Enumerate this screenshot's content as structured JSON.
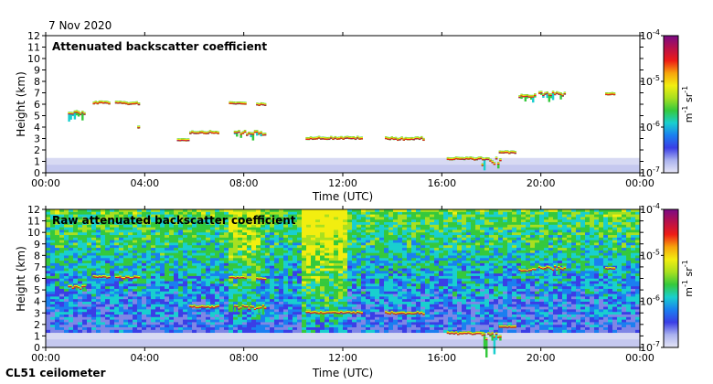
{
  "header": {
    "date": "7 Nov 2020"
  },
  "footer": {
    "instrument": "CL51 ceilometer"
  },
  "chart_data": [
    {
      "type": "heatmap",
      "title": "Attenuated backscatter coefficient",
      "xlabel": "Time (UTC)",
      "ylabel": "Height (km)",
      "xlim": [
        0,
        24
      ],
      "ylim": [
        0,
        12
      ],
      "xticks": [
        0,
        4,
        8,
        12,
        16,
        20,
        24
      ],
      "xtick_labels": [
        "00:00",
        "04:00",
        "08:00",
        "12:00",
        "16:00",
        "20:00",
        "00:00"
      ],
      "yticks": [
        0,
        1,
        2,
        3,
        4,
        5,
        6,
        7,
        8,
        9,
        10,
        11,
        12
      ],
      "noise_level": "low",
      "cloud_layers": [
        {
          "t0": 0.9,
          "t1": 1.6,
          "h0": 4.9,
          "h1": 5.6
        },
        {
          "t0": 1.9,
          "t1": 2.6,
          "h0": 6.0,
          "h1": 6.3
        },
        {
          "t0": 2.8,
          "t1": 3.8,
          "h0": 5.9,
          "h1": 6.3
        },
        {
          "t0": 3.7,
          "t1": 3.8,
          "h0": 3.9,
          "h1": 4.1
        },
        {
          "t0": 5.3,
          "t1": 5.8,
          "h0": 2.8,
          "h1": 3.0
        },
        {
          "t0": 5.8,
          "t1": 7.0,
          "h0": 3.4,
          "h1": 3.7
        },
        {
          "t0": 7.4,
          "t1": 8.1,
          "h0": 6.0,
          "h1": 6.2
        },
        {
          "t0": 7.6,
          "t1": 8.9,
          "h0": 3.1,
          "h1": 3.9
        },
        {
          "t0": 8.5,
          "t1": 8.9,
          "h0": 5.9,
          "h1": 6.1
        },
        {
          "t0": 10.5,
          "t1": 12.8,
          "h0": 2.9,
          "h1": 3.2
        },
        {
          "t0": 13.7,
          "t1": 15.3,
          "h0": 2.8,
          "h1": 3.2
        },
        {
          "t0": 16.2,
          "t1": 17.7,
          "h0": 1.1,
          "h1": 1.4
        },
        {
          "t0": 17.6,
          "t1": 18.4,
          "h0": 0.1,
          "h1": 1.8
        },
        {
          "t0": 18.3,
          "t1": 19.0,
          "h0": 1.7,
          "h1": 1.9
        },
        {
          "t0": 19.1,
          "t1": 19.8,
          "h0": 6.5,
          "h1": 7.0
        },
        {
          "t0": 19.9,
          "t1": 21.0,
          "h0": 6.5,
          "h1": 7.3
        },
        {
          "t0": 22.6,
          "t1": 23.0,
          "h0": 6.8,
          "h1": 7.0
        }
      ]
    },
    {
      "type": "heatmap",
      "title": "Raw attenuated backscatter coefficient",
      "xlabel": "Time (UTC)",
      "ylabel": "Height (km)",
      "xlim": [
        0,
        24
      ],
      "ylim": [
        0,
        12
      ],
      "xticks": [
        0,
        4,
        8,
        12,
        16,
        20,
        24
      ],
      "xtick_labels": [
        "00:00",
        "04:00",
        "08:00",
        "12:00",
        "16:00",
        "20:00",
        "00:00"
      ],
      "yticks": [
        0,
        1,
        2,
        3,
        4,
        5,
        6,
        7,
        8,
        9,
        10,
        11,
        12
      ],
      "noise_level": "high",
      "cloud_layers": [
        {
          "t0": 0.9,
          "t1": 1.6,
          "h0": 4.9,
          "h1": 5.6
        },
        {
          "t0": 1.9,
          "t1": 2.6,
          "h0": 6.0,
          "h1": 6.3
        },
        {
          "t0": 2.8,
          "t1": 3.8,
          "h0": 5.9,
          "h1": 6.3
        },
        {
          "t0": 5.8,
          "t1": 7.0,
          "h0": 3.4,
          "h1": 3.7
        },
        {
          "t0": 7.4,
          "t1": 8.1,
          "h0": 6.0,
          "h1": 6.2
        },
        {
          "t0": 7.6,
          "t1": 8.9,
          "h0": 3.1,
          "h1": 3.9
        },
        {
          "t0": 8.5,
          "t1": 8.9,
          "h0": 5.9,
          "h1": 6.1
        },
        {
          "t0": 10.5,
          "t1": 12.8,
          "h0": 2.9,
          "h1": 3.2
        },
        {
          "t0": 13.7,
          "t1": 15.3,
          "h0": 2.8,
          "h1": 3.2
        },
        {
          "t0": 16.2,
          "t1": 17.7,
          "h0": 1.1,
          "h1": 1.4
        },
        {
          "t0": 17.6,
          "t1": 18.4,
          "h0": 0.1,
          "h1": 1.8
        },
        {
          "t0": 18.3,
          "t1": 19.0,
          "h0": 1.7,
          "h1": 1.9
        },
        {
          "t0": 19.1,
          "t1": 19.8,
          "h0": 6.5,
          "h1": 7.0
        },
        {
          "t0": 19.9,
          "t1": 21.0,
          "h0": 6.5,
          "h1": 7.3
        },
        {
          "t0": 22.6,
          "t1": 23.0,
          "h0": 6.8,
          "h1": 7.0
        }
      ]
    }
  ],
  "colorbar": {
    "scale": "log",
    "range": [
      "1e-7",
      "1e-4"
    ],
    "tick_bases": [
      "10",
      "10",
      "10",
      "10"
    ],
    "tick_exponents": [
      "-4",
      "-5",
      "-6",
      "-7"
    ],
    "unit_base": "m",
    "unit_exp1": "-1",
    "unit_mid": " sr",
    "unit_exp2": "-1",
    "colors": [
      "#e6e6f6",
      "#aab2ee",
      "#3a3ee6",
      "#1a7ff0",
      "#19cfcf",
      "#35c93d",
      "#a8e020",
      "#f2ee10",
      "#f7a40c",
      "#ee1c16",
      "#b8104a",
      "#7a0a86"
    ]
  }
}
